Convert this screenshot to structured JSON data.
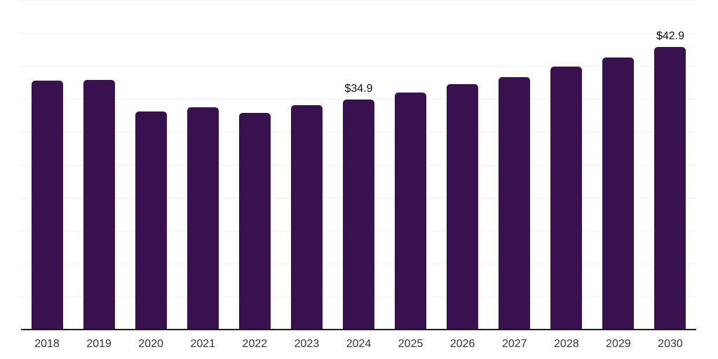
{
  "chart_data": {
    "type": "bar",
    "title": "",
    "categories": [
      "2018",
      "2019",
      "2020",
      "2021",
      "2022",
      "2023",
      "2024",
      "2025",
      "2026",
      "2027",
      "2028",
      "2029",
      "2030"
    ],
    "values": [
      37.8,
      37.9,
      33.1,
      33.7,
      32.9,
      34.0,
      34.9,
      36.0,
      37.2,
      38.3,
      39.9,
      41.3,
      42.9
    ],
    "value_labels": [
      "",
      "",
      "",
      "",
      "",
      "",
      "$34.9",
      "",
      "",
      "",
      "",
      "",
      "$42.9"
    ],
    "ylim": [
      0,
      50
    ],
    "gridline_step": 5,
    "grid": true,
    "legend_position": "none",
    "xlabel": "",
    "ylabel": "",
    "colors": {
      "bar": "#38114E",
      "axis": "#1c1c1c",
      "gridline": "#f2f2f2",
      "tick_label": "#333333",
      "value_label": "#111111",
      "background": "#ffffff"
    }
  }
}
